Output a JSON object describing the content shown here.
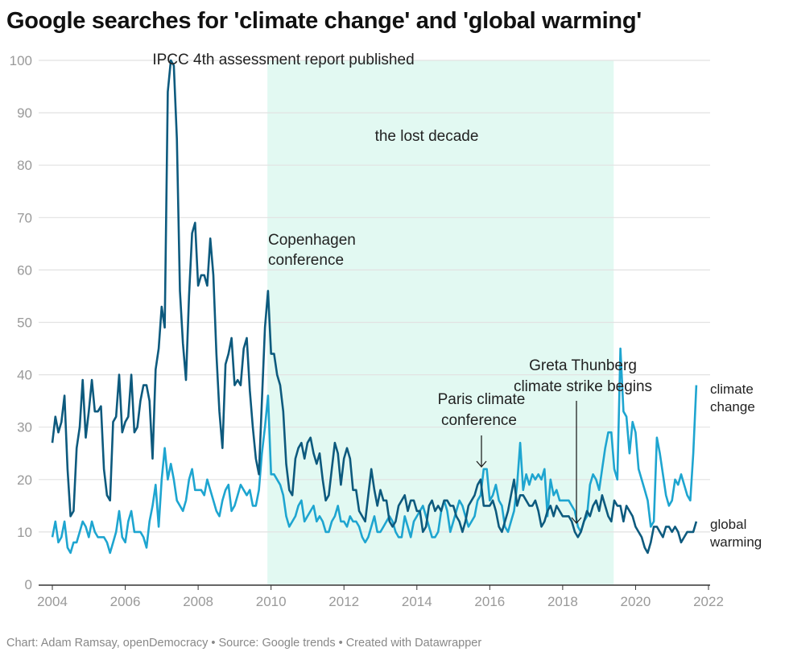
{
  "chart_data": {
    "type": "line",
    "title": "Google searches for 'climate change' and 'global warming'",
    "period": [
      "2004-01",
      "2021-09"
    ],
    "xlim": [
      2004,
      2022
    ],
    "ylim": [
      0,
      100
    ],
    "x_ticks": [
      "2004",
      "2006",
      "2008",
      "2010",
      "2012",
      "2014",
      "2016",
      "2018",
      "2020",
      "2022"
    ],
    "y_ticks": [
      "0",
      "10",
      "20",
      "30",
      "40",
      "50",
      "60",
      "70",
      "80",
      "90",
      "100"
    ],
    "grid": true,
    "series": [
      {
        "name": "global warming",
        "label_lines": [
          "global",
          "warming"
        ],
        "color": "#0d5a7e",
        "values": [
          27,
          32,
          29,
          31,
          36,
          22,
          13,
          14,
          26,
          30,
          39,
          28,
          33,
          39,
          33,
          33,
          34,
          22,
          17,
          16,
          31,
          32,
          40,
          29,
          31,
          32,
          40,
          29,
          30,
          35,
          38,
          38,
          35,
          24,
          41,
          45,
          53,
          49,
          94,
          100,
          99,
          85,
          56,
          46,
          39,
          55,
          67,
          69,
          57,
          59,
          59,
          57,
          66,
          59,
          44,
          33,
          26,
          42,
          44,
          47,
          38,
          39,
          38,
          45,
          47,
          37,
          30,
          24,
          21,
          35,
          49,
          56,
          44,
          44,
          40,
          38,
          33,
          23,
          18,
          17,
          24,
          26,
          27,
          24,
          27,
          28,
          25,
          23,
          25,
          20,
          16,
          17,
          22,
          27,
          25,
          19,
          24,
          26,
          24,
          18,
          18,
          14,
          13,
          12,
          17,
          22,
          18,
          15,
          18,
          16,
          16,
          12,
          11,
          12,
          15,
          16,
          17,
          14,
          16,
          16,
          14,
          14,
          10,
          11,
          15,
          16,
          14,
          15,
          14,
          16,
          16,
          15,
          15,
          13,
          12,
          10,
          12,
          15,
          16,
          17,
          19,
          20,
          15,
          15,
          15,
          16,
          14,
          11,
          10,
          12,
          14,
          17,
          20,
          15,
          17,
          17,
          16,
          15,
          15,
          16,
          14,
          11,
          12,
          14,
          15,
          13,
          15,
          14,
          13,
          13,
          13,
          12,
          10,
          9,
          10,
          12,
          14,
          13,
          15,
          16,
          14,
          17,
          15,
          13,
          12,
          16,
          15,
          15,
          12,
          15,
          14,
          13,
          11,
          10,
          9,
          7,
          6,
          8,
          11,
          11,
          10,
          9,
          11,
          11,
          10,
          11,
          10,
          8,
          9,
          10,
          10,
          10,
          12
        ]
      },
      {
        "name": "climate change",
        "label_lines": [
          "climate",
          "change"
        ],
        "color": "#1ea5d0",
        "values": [
          9,
          12,
          8,
          9,
          12,
          7,
          6,
          8,
          8,
          10,
          12,
          11,
          9,
          12,
          10,
          9,
          9,
          9,
          8,
          6,
          8,
          10,
          14,
          9,
          8,
          12,
          14,
          10,
          10,
          10,
          9,
          7,
          12,
          15,
          19,
          11,
          20,
          26,
          20,
          23,
          20,
          16,
          15,
          14,
          16,
          20,
          22,
          18,
          18,
          18,
          17,
          20,
          18,
          16,
          14,
          13,
          16,
          18,
          19,
          14,
          15,
          17,
          19,
          18,
          17,
          18,
          15,
          15,
          18,
          25,
          30,
          36,
          21,
          21,
          20,
          19,
          17,
          13,
          11,
          12,
          13,
          15,
          16,
          12,
          13,
          14,
          15,
          12,
          13,
          12,
          10,
          10,
          12,
          13,
          15,
          12,
          12,
          11,
          13,
          12,
          12,
          11,
          9,
          8,
          9,
          11,
          13,
          10,
          10,
          11,
          12,
          13,
          12,
          10,
          9,
          9,
          13,
          11,
          9,
          12,
          13,
          14,
          15,
          13,
          11,
          9,
          9,
          10,
          14,
          16,
          14,
          10,
          12,
          14,
          16,
          15,
          13,
          11,
          12,
          13,
          16,
          17,
          22,
          22,
          16,
          17,
          19,
          16,
          15,
          11,
          10,
          12,
          14,
          19,
          27,
          18,
          21,
          19,
          21,
          20,
          21,
          20,
          22,
          13,
          20,
          17,
          18,
          16,
          16,
          16,
          16,
          15,
          14,
          11,
          10,
          12,
          13,
          19,
          21,
          20,
          18,
          22,
          26,
          29,
          29,
          22,
          20,
          45,
          33,
          32,
          25,
          31,
          29,
          22,
          20,
          18,
          16,
          11,
          12,
          28,
          25,
          21,
          17,
          15,
          16,
          20,
          19,
          21,
          19,
          17,
          16,
          25,
          38
        ]
      }
    ],
    "shaded_range": {
      "from": 2009.9,
      "to": 2019.4,
      "label": "the lost decade",
      "color": "#e2f9f2"
    },
    "annotations": {
      "ipcc": "IPCC 4th assessment report published",
      "copenhagen": [
        "Copenhagen",
        "conference"
      ],
      "paris": [
        "Paris climate",
        "conference"
      ],
      "greta": [
        "Greta Thunberg",
        "climate strike begins"
      ]
    }
  },
  "footer": "Chart: Adam Ramsay, openDemocracy • Source: Google trends • Created with Datawrapper"
}
